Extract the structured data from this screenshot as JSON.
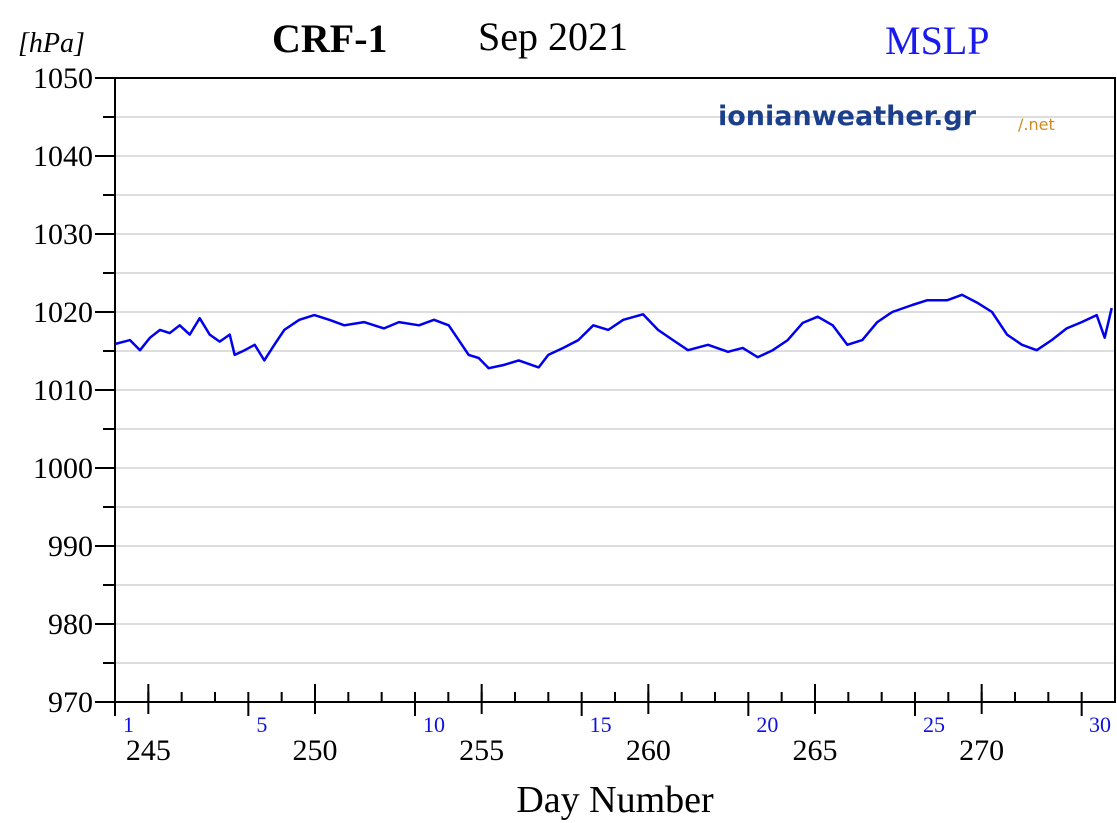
{
  "chart_data": {
    "type": "line",
    "title": "CRF-1",
    "subtitle": "Sep  2021",
    "variable": "MSLP",
    "y_label": "[hPa]",
    "x_label": "Day  Number",
    "watermark": "ionianweather.gr",
    "watermark_suffix": "/.net",
    "xlim": [
      244,
      274
    ],
    "ylim": [
      970,
      1050
    ],
    "yticks": [
      970,
      980,
      990,
      1000,
      1010,
      1020,
      1030,
      1040,
      1050
    ],
    "ygrid": [
      975,
      980,
      985,
      990,
      995,
      1000,
      1005,
      1010,
      1015,
      1020,
      1025,
      1030,
      1035,
      1040,
      1045
    ],
    "xticks": [
      245,
      250,
      255,
      260,
      265,
      270
    ],
    "minor_xticks": [
      244,
      245,
      246,
      247,
      248,
      249,
      250,
      251,
      252,
      253,
      254,
      255,
      256,
      257,
      258,
      259,
      260,
      261,
      262,
      263,
      264,
      265,
      266,
      267,
      268,
      269,
      270,
      271,
      272,
      273,
      274
    ],
    "day_of_month_ticks": [
      {
        "value": 244,
        "label": "1"
      },
      {
        "value": 248,
        "label": "5"
      },
      {
        "value": 253,
        "label": "10"
      },
      {
        "value": 258,
        "label": "15"
      },
      {
        "value": 263,
        "label": "20"
      },
      {
        "value": 268,
        "label": "25"
      },
      {
        "value": 273,
        "label": "30"
      }
    ],
    "grid": true,
    "series": [
      {
        "name": "MSLP",
        "color": "#0000ee",
        "x": [
          244.0,
          244.45,
          244.75,
          245.05,
          245.35,
          245.64,
          245.94,
          246.24,
          246.54,
          246.84,
          247.14,
          247.44,
          247.59,
          247.89,
          248.19,
          248.48,
          248.78,
          249.08,
          249.53,
          249.98,
          250.43,
          250.88,
          251.47,
          252.07,
          252.52,
          253.12,
          253.57,
          254.01,
          254.31,
          254.61,
          254.91,
          255.21,
          255.66,
          256.11,
          256.71,
          257.0,
          257.45,
          257.9,
          258.35,
          258.8,
          259.25,
          259.84,
          260.29,
          260.74,
          261.19,
          261.79,
          262.39,
          262.83,
          263.28,
          263.73,
          264.18,
          264.63,
          265.08,
          265.53,
          265.97,
          266.42,
          266.87,
          267.32,
          267.92,
          268.36,
          268.96,
          269.41,
          269.86,
          270.31,
          270.76,
          271.21,
          271.65,
          272.1,
          272.55,
          273.0,
          273.45,
          273.69,
          273.9
        ],
        "values": [
          1015.9,
          1016.4,
          1015.1,
          1016.7,
          1017.7,
          1017.3,
          1018.3,
          1017.1,
          1019.2,
          1017.1,
          1016.2,
          1017.1,
          1014.5,
          1015.1,
          1015.8,
          1013.8,
          1015.8,
          1017.7,
          1019.0,
          1019.6,
          1019.0,
          1018.3,
          1018.7,
          1017.9,
          1018.7,
          1018.3,
          1019.0,
          1018.3,
          1016.4,
          1014.5,
          1014.1,
          1012.8,
          1013.2,
          1013.8,
          1012.9,
          1014.5,
          1015.4,
          1016.4,
          1018.3,
          1017.7,
          1019.0,
          1019.7,
          1017.7,
          1016.4,
          1015.1,
          1015.8,
          1014.9,
          1015.4,
          1014.2,
          1015.1,
          1016.4,
          1018.6,
          1019.4,
          1018.3,
          1015.8,
          1016.4,
          1018.7,
          1020.0,
          1020.9,
          1021.5,
          1021.5,
          1022.2,
          1021.2,
          1020.0,
          1017.1,
          1015.8,
          1015.1,
          1016.4,
          1017.9,
          1018.7,
          1019.6,
          1016.7,
          1020.5
        ]
      }
    ]
  }
}
